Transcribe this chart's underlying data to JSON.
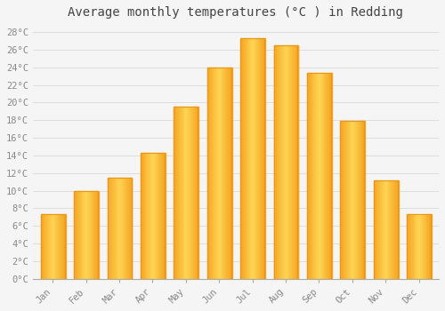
{
  "title": "Average monthly temperatures (°C ) in Redding",
  "months": [
    "Jan",
    "Feb",
    "Mar",
    "Apr",
    "May",
    "Jun",
    "Jul",
    "Aug",
    "Sep",
    "Oct",
    "Nov",
    "Dec"
  ],
  "values": [
    7.3,
    10.0,
    11.5,
    14.3,
    19.5,
    24.0,
    27.3,
    26.5,
    23.4,
    17.9,
    11.2,
    7.3
  ],
  "bar_color_left": "#F5A623",
  "bar_color_center": "#FFD04A",
  "bar_color_right": "#F5A623",
  "ylim": [
    0,
    29
  ],
  "ytick_step": 2,
  "background_color": "#f5f5f5",
  "plot_bg_color": "#f5f5f5",
  "grid_color": "#dddddd",
  "title_fontsize": 10,
  "tick_fontsize": 7.5,
  "font_family": "monospace",
  "title_color": "#444444",
  "tick_color": "#888888"
}
